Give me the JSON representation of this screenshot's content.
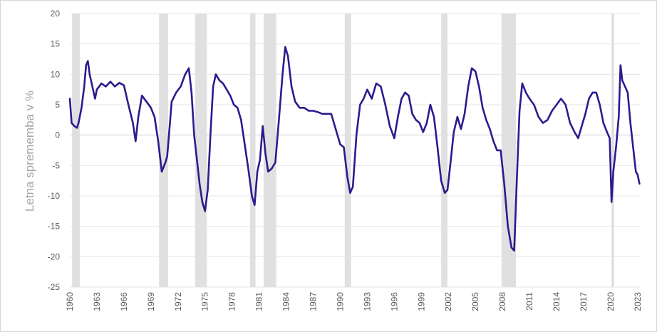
{
  "chart_data": {
    "type": "line",
    "title": "",
    "xlabel": "",
    "ylabel": "Letna sprememba v %",
    "ylim": [
      -25,
      20
    ],
    "xlim": [
      1960,
      2023.25
    ],
    "yticks": [
      20,
      15,
      10,
      5,
      0,
      -5,
      -10,
      -15,
      -20,
      -25
    ],
    "xticks": [
      1960,
      1963,
      1966,
      1969,
      1972,
      1975,
      1978,
      1981,
      1984,
      1987,
      1990,
      1993,
      1996,
      1999,
      2002,
      2005,
      2008,
      2011,
      2014,
      2017,
      2020,
      2023
    ],
    "grid": "horizontal",
    "line_color": "#2e1a8e",
    "band_color": "#e0e0e0",
    "recession_bands": [
      [
        1960.25,
        1961.1
      ],
      [
        1969.9,
        1970.9
      ],
      [
        1973.9,
        1975.2
      ],
      [
        1980.0,
        1980.6
      ],
      [
        1981.5,
        1982.9
      ],
      [
        1990.5,
        1991.2
      ],
      [
        2001.2,
        2001.9
      ],
      [
        2007.9,
        2009.5
      ],
      [
        2020.1,
        2020.4
      ]
    ],
    "series": [
      {
        "name": "",
        "x": [
          1960.0,
          1960.2,
          1960.5,
          1960.8,
          1961.0,
          1961.3,
          1961.6,
          1961.8,
          1962.0,
          1962.2,
          1962.5,
          1962.8,
          1963.0,
          1963.5,
          1964.0,
          1964.5,
          1965.0,
          1965.5,
          1966.0,
          1966.5,
          1967.0,
          1967.3,
          1967.6,
          1968.0,
          1968.5,
          1969.0,
          1969.4,
          1969.8,
          1970.2,
          1970.6,
          1970.8,
          1971.0,
          1971.3,
          1971.8,
          1972.3,
          1972.8,
          1973.2,
          1973.5,
          1973.8,
          1974.1,
          1974.4,
          1974.7,
          1975.0,
          1975.3,
          1975.6,
          1975.9,
          1976.2,
          1976.6,
          1977.0,
          1977.4,
          1977.8,
          1978.2,
          1978.6,
          1979.0,
          1979.4,
          1979.8,
          1980.2,
          1980.5,
          1980.8,
          1981.1,
          1981.4,
          1981.7,
          1982.0,
          1982.4,
          1982.8,
          1983.2,
          1983.6,
          1983.9,
          1984.2,
          1984.6,
          1985.0,
          1985.5,
          1986.0,
          1986.5,
          1987.0,
          1987.5,
          1988.0,
          1988.5,
          1989.0,
          1989.5,
          1990.0,
          1990.4,
          1990.8,
          1991.1,
          1991.4,
          1991.8,
          1992.2,
          1992.6,
          1993.0,
          1993.5,
          1994.0,
          1994.5,
          1995.0,
          1995.5,
          1996.0,
          1996.4,
          1996.8,
          1997.2,
          1997.6,
          1998.0,
          1998.4,
          1998.8,
          1999.2,
          1999.6,
          2000.0,
          2000.4,
          2000.8,
          2001.2,
          2001.6,
          2001.9,
          2002.2,
          2002.6,
          2003.0,
          2003.4,
          2003.8,
          2004.2,
          2004.6,
          2005.0,
          2005.4,
          2005.8,
          2006.2,
          2006.6,
          2007.0,
          2007.4,
          2007.8,
          2008.2,
          2008.6,
          2009.0,
          2009.3,
          2009.6,
          2009.9,
          2010.2,
          2010.6,
          2011.0,
          2011.5,
          2012.0,
          2012.5,
          2013.0,
          2013.5,
          2014.0,
          2014.5,
          2015.0,
          2015.5,
          2016.0,
          2016.4,
          2016.8,
          2017.2,
          2017.6,
          2018.0,
          2018.4,
          2018.8,
          2019.2,
          2019.6,
          2019.9,
          2020.1,
          2020.3,
          2020.6,
          2020.9,
          2021.1,
          2021.3,
          2021.6,
          2021.9,
          2022.2,
          2022.5,
          2022.8,
          2023.0,
          2023.2
        ],
        "values": [
          6.0,
          2.0,
          1.5,
          1.2,
          2.2,
          4.5,
          8.0,
          11.5,
          12.2,
          10.0,
          8.0,
          6.0,
          7.5,
          8.5,
          8.0,
          8.8,
          8.0,
          8.6,
          8.2,
          5.0,
          2.0,
          -1.0,
          3.0,
          6.5,
          5.5,
          4.5,
          3.0,
          -1.0,
          -6.0,
          -4.5,
          -3.5,
          0.0,
          5.5,
          7.0,
          8.0,
          10.0,
          11.0,
          7.0,
          0.0,
          -4.0,
          -8.0,
          -11.0,
          -12.5,
          -9.0,
          0.0,
          8.0,
          10.0,
          9.0,
          8.5,
          7.5,
          6.5,
          5.0,
          4.5,
          2.5,
          -1.5,
          -5.5,
          -10.0,
          -11.5,
          -6.0,
          -4.0,
          1.5,
          -3.0,
          -6.0,
          -5.5,
          -4.5,
          2.5,
          10.0,
          14.5,
          13.0,
          8.0,
          5.5,
          4.5,
          4.5,
          4.0,
          4.0,
          3.8,
          3.5,
          3.5,
          3.5,
          1.0,
          -1.5,
          -2.0,
          -7.0,
          -9.5,
          -8.5,
          0.0,
          5.0,
          6.0,
          7.5,
          6.0,
          8.5,
          8.0,
          5.0,
          1.5,
          -0.5,
          3.0,
          6.0,
          7.0,
          6.5,
          3.5,
          2.5,
          2.0,
          0.5,
          2.0,
          5.0,
          3.0,
          -2.0,
          -7.5,
          -9.5,
          -9.0,
          -5.0,
          0.5,
          3.0,
          1.0,
          3.5,
          8.0,
          11.0,
          10.5,
          8.0,
          4.5,
          2.5,
          1.0,
          -1.0,
          -2.5,
          -2.5,
          -8.0,
          -15.0,
          -18.5,
          -19.0,
          -7.0,
          4.0,
          8.5,
          7.0,
          6.0,
          5.0,
          3.0,
          2.0,
          2.5,
          4.0,
          5.0,
          6.0,
          5.0,
          2.0,
          0.5,
          -0.5,
          1.5,
          3.5,
          6.0,
          7.0,
          7.0,
          5.0,
          2.0,
          0.5,
          -0.5,
          -11.0,
          -6.0,
          -2.0,
          3.0,
          11.5,
          9.0,
          8.0,
          7.0,
          2.0,
          -2.0,
          -6.0,
          -6.5,
          -8.0
        ]
      }
    ]
  }
}
